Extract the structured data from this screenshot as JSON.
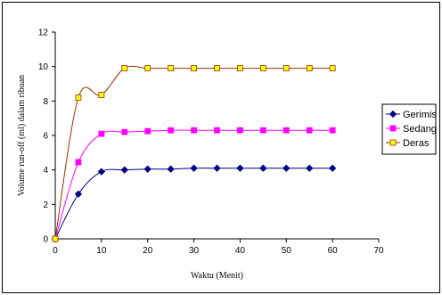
{
  "chart_data": {
    "type": "line",
    "title": "",
    "xlabel": "Waktu (Menit)",
    "ylabel": "Volume run-off (ml) dalam ribuan",
    "xlim": [
      0,
      70
    ],
    "ylim": [
      0,
      12
    ],
    "xticks": [
      0,
      10,
      20,
      30,
      40,
      50,
      60,
      70
    ],
    "yticks": [
      0,
      2,
      4,
      6,
      8,
      10,
      12
    ],
    "grid": false,
    "legend_position": "right",
    "x": [
      0,
      5,
      10,
      15,
      20,
      25,
      30,
      35,
      40,
      45,
      50,
      55,
      60
    ],
    "series": [
      {
        "name": "Gerimis",
        "color": "#000080",
        "marker": "diamond",
        "values": [
          0,
          2.6,
          3.9,
          4.0,
          4.05,
          4.05,
          4.1,
          4.1,
          4.1,
          4.1,
          4.1,
          4.1,
          4.1
        ]
      },
      {
        "name": "Sedang",
        "color": "#FF00FF",
        "marker": "square",
        "values": [
          0,
          4.45,
          6.1,
          6.2,
          6.25,
          6.3,
          6.3,
          6.3,
          6.3,
          6.3,
          6.3,
          6.3,
          6.3
        ]
      },
      {
        "name": "Deras",
        "color": "#993300",
        "marker_fill": "#FFFF00",
        "marker": "square",
        "values": [
          0,
          8.2,
          8.35,
          9.9,
          9.9,
          9.9,
          9.9,
          9.9,
          9.9,
          9.9,
          9.9,
          9.9,
          9.9
        ]
      }
    ]
  }
}
